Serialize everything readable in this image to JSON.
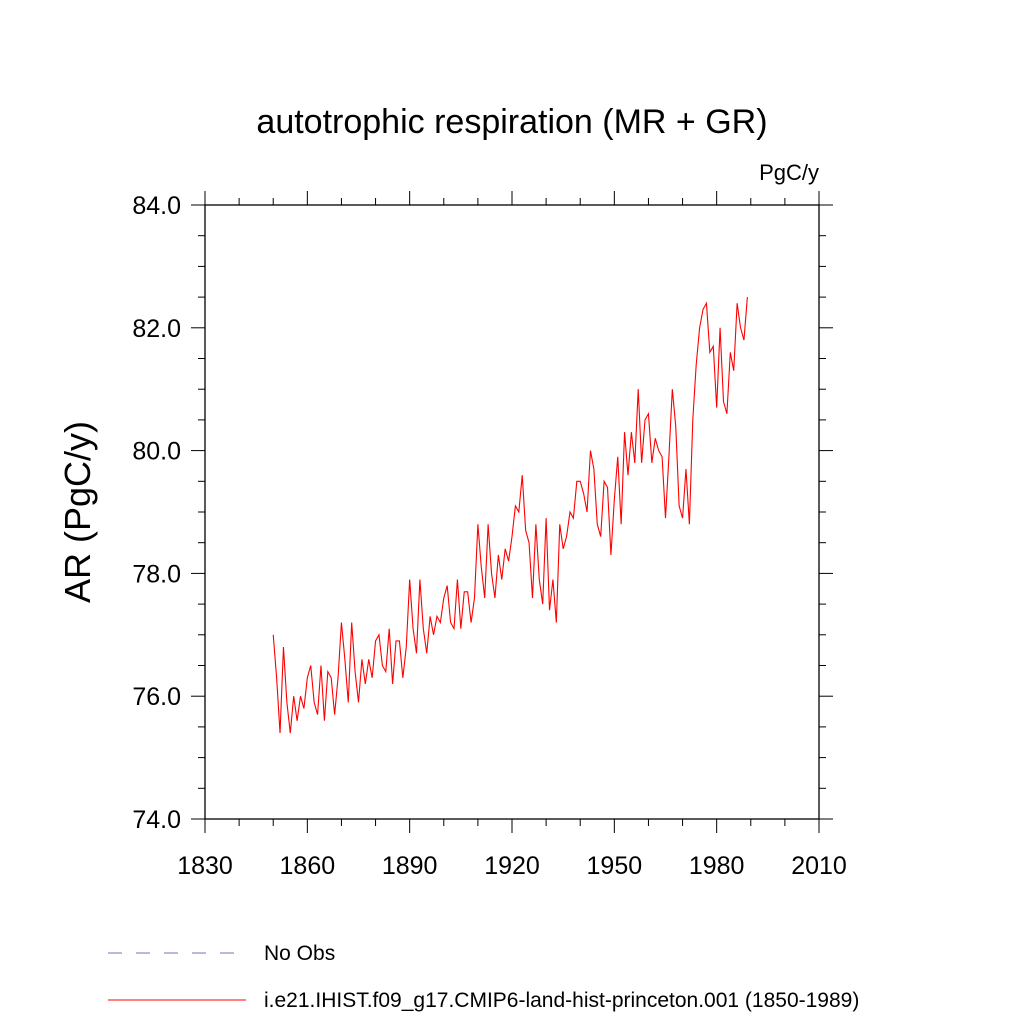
{
  "chart_data": {
    "type": "line",
    "title": "autotrophic respiration (MR + GR)",
    "units": "PgC/y",
    "ylabel": "AR  (PgC/y)",
    "xlabel": "",
    "xlim": [
      1830,
      2010
    ],
    "ylim": [
      74.0,
      84.0
    ],
    "x_ticks": [
      "1830",
      "1860",
      "1890",
      "1920",
      "1950",
      "1980",
      "2010"
    ],
    "y_ticks": [
      "74.0",
      "76.0",
      "78.0",
      "80.0",
      "82.0",
      "84.0"
    ],
    "legend_position": "bottom",
    "legend": [
      {
        "label": "No Obs",
        "color": "#7a6fb8",
        "style": "dashed"
      },
      {
        "label": "i.e21.IHIST.f09_g17.CMIP6-land-hist-princeton.001 (1850-1989)",
        "color": "#ff0000",
        "style": "solid"
      }
    ],
    "series": [
      {
        "name": "i.e21.IHIST.f09_g17.CMIP6-land-hist-princeton.001 (1850-1989)",
        "color": "#ff0000",
        "x_start": 1850,
        "values": [
          77.0,
          76.3,
          75.4,
          76.8,
          75.9,
          75.4,
          76.0,
          75.6,
          76.0,
          75.8,
          76.3,
          76.5,
          75.9,
          75.7,
          76.5,
          75.6,
          76.4,
          76.3,
          75.7,
          76.3,
          77.2,
          76.6,
          75.9,
          77.2,
          76.4,
          75.9,
          76.6,
          76.2,
          76.6,
          76.3,
          76.9,
          77.0,
          76.5,
          76.4,
          77.1,
          76.2,
          76.9,
          76.9,
          76.3,
          76.8,
          77.9,
          77.1,
          76.7,
          77.9,
          77.1,
          76.7,
          77.3,
          77.0,
          77.3,
          77.2,
          77.6,
          77.8,
          77.2,
          77.1,
          77.9,
          77.1,
          77.7,
          77.7,
          77.2,
          77.6,
          78.8,
          78.1,
          77.6,
          78.8,
          78.0,
          77.6,
          78.3,
          77.9,
          78.4,
          78.2,
          78.6,
          79.1,
          79.0,
          79.6,
          78.7,
          78.5,
          77.6,
          78.8,
          77.9,
          77.5,
          78.9,
          77.4,
          77.9,
          77.2,
          78.8,
          78.4,
          78.6,
          79.0,
          78.9,
          79.5,
          79.5,
          79.3,
          79.0,
          80.0,
          79.7,
          78.8,
          78.6,
          79.5,
          79.4,
          78.3,
          79.2,
          79.9,
          78.8,
          80.3,
          79.6,
          80.3,
          79.8,
          81.0,
          79.8,
          80.5,
          80.6,
          79.8,
          80.2,
          80.0,
          79.9,
          78.9,
          79.9,
          81.0,
          80.4,
          79.1,
          78.9,
          79.7,
          78.8,
          80.5,
          81.4,
          82.0,
          82.3,
          82.4,
          81.6,
          81.7,
          80.7,
          82.0,
          80.8,
          80.6,
          81.6,
          81.3,
          82.4,
          82.0,
          81.8,
          82.5
        ]
      }
    ]
  }
}
